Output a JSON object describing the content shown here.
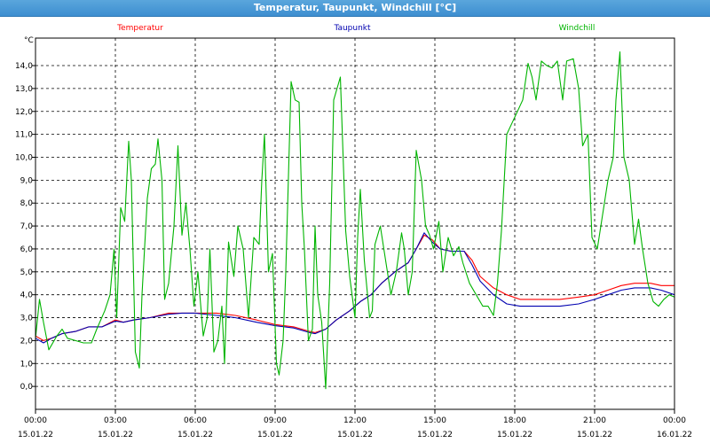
{
  "window": {
    "title": "Temperatur, Taupunkt, Windchill [°C]"
  },
  "chart_data": {
    "type": "line",
    "title": "Temperatur, Taupunkt, Windchill [°C]",
    "ylabel": "°C",
    "xlabel": "",
    "ylim": [
      -1.0,
      15.2
    ],
    "xlim": [
      0,
      24
    ],
    "grid": true,
    "legend": "top",
    "x_ticks": [
      {
        "hour": 0,
        "time": "00:00",
        "date": "15.01.22"
      },
      {
        "hour": 3,
        "time": "03:00",
        "date": "15.01.22"
      },
      {
        "hour": 6,
        "time": "06:00",
        "date": "15.01.22"
      },
      {
        "hour": 9,
        "time": "09:00",
        "date": "15.01.22"
      },
      {
        "hour": 12,
        "time": "12:00",
        "date": "15.01.22"
      },
      {
        "hour": 15,
        "time": "15:00",
        "date": "15.01.22"
      },
      {
        "hour": 18,
        "time": "18:00",
        "date": "15.01.22"
      },
      {
        "hour": 21,
        "time": "21:00",
        "date": "15.01.22"
      },
      {
        "hour": 24,
        "time": "00:00",
        "date": "16.01.22"
      }
    ],
    "y_ticks": [
      "0,0",
      "1,0",
      "2,0",
      "3,0",
      "4,0",
      "5,0",
      "6,0",
      "7,0",
      "8,0",
      "9,0",
      "10,0",
      "11,0",
      "12,0",
      "13,0",
      "14,0"
    ],
    "series": [
      {
        "name": "Temperatur",
        "color": "#ff0000",
        "points": [
          [
            0,
            2.2
          ],
          [
            0.3,
            2.0
          ],
          [
            0.6,
            2.1
          ],
          [
            1.0,
            2.3
          ],
          [
            1.5,
            2.4
          ],
          [
            2.0,
            2.6
          ],
          [
            2.5,
            2.6
          ],
          [
            3.0,
            2.9
          ],
          [
            3.3,
            2.8
          ],
          [
            3.7,
            2.9
          ],
          [
            4.3,
            3.0
          ],
          [
            5.0,
            3.2
          ],
          [
            5.5,
            3.2
          ],
          [
            6.0,
            3.2
          ],
          [
            6.8,
            3.2
          ],
          [
            7.5,
            3.1
          ],
          [
            8.3,
            2.9
          ],
          [
            9.0,
            2.7
          ],
          [
            9.7,
            2.6
          ],
          [
            10.3,
            2.4
          ],
          [
            10.5,
            2.35
          ],
          [
            10.9,
            2.5
          ],
          [
            11.3,
            2.9
          ],
          [
            11.8,
            3.3
          ],
          [
            12.2,
            3.7
          ],
          [
            12.6,
            4.0
          ],
          [
            13.0,
            4.5
          ],
          [
            13.5,
            5.0
          ],
          [
            14.0,
            5.4
          ],
          [
            14.3,
            6.0
          ],
          [
            14.6,
            6.6
          ],
          [
            14.9,
            6.4
          ],
          [
            15.2,
            6.0
          ],
          [
            15.6,
            5.9
          ],
          [
            16.1,
            5.9
          ],
          [
            16.4,
            5.5
          ],
          [
            16.7,
            4.8
          ],
          [
            17.2,
            4.3
          ],
          [
            17.7,
            4.0
          ],
          [
            18.2,
            3.8
          ],
          [
            19.0,
            3.8
          ],
          [
            19.7,
            3.8
          ],
          [
            20.4,
            3.9
          ],
          [
            21.0,
            4.0
          ],
          [
            21.5,
            4.2
          ],
          [
            22.0,
            4.4
          ],
          [
            22.5,
            4.5
          ],
          [
            23.1,
            4.5
          ],
          [
            23.5,
            4.4
          ],
          [
            24,
            4.4
          ]
        ]
      },
      {
        "name": "Taupunkt",
        "color": "#0000b0",
        "points": [
          [
            0,
            2.1
          ],
          [
            0.3,
            1.9
          ],
          [
            0.6,
            2.1
          ],
          [
            1.0,
            2.3
          ],
          [
            1.5,
            2.4
          ],
          [
            2.0,
            2.6
          ],
          [
            2.5,
            2.6
          ],
          [
            3.0,
            2.85
          ],
          [
            3.3,
            2.8
          ],
          [
            3.7,
            2.9
          ],
          [
            4.3,
            3.0
          ],
          [
            5.0,
            3.15
          ],
          [
            5.5,
            3.2
          ],
          [
            6.0,
            3.2
          ],
          [
            6.8,
            3.1
          ],
          [
            7.5,
            3.0
          ],
          [
            8.3,
            2.8
          ],
          [
            9.0,
            2.65
          ],
          [
            9.7,
            2.55
          ],
          [
            10.3,
            2.35
          ],
          [
            10.5,
            2.3
          ],
          [
            10.9,
            2.5
          ],
          [
            11.3,
            2.9
          ],
          [
            11.8,
            3.3
          ],
          [
            12.2,
            3.7
          ],
          [
            12.6,
            4.0
          ],
          [
            13.0,
            4.5
          ],
          [
            13.5,
            5.0
          ],
          [
            14.0,
            5.4
          ],
          [
            14.3,
            6.0
          ],
          [
            14.6,
            6.7
          ],
          [
            14.9,
            6.3
          ],
          [
            15.2,
            6.0
          ],
          [
            15.6,
            5.9
          ],
          [
            16.1,
            5.9
          ],
          [
            16.4,
            5.3
          ],
          [
            16.7,
            4.6
          ],
          [
            17.2,
            4.0
          ],
          [
            17.7,
            3.6
          ],
          [
            18.2,
            3.5
          ],
          [
            19.0,
            3.5
          ],
          [
            19.7,
            3.5
          ],
          [
            20.4,
            3.6
          ],
          [
            21.0,
            3.8
          ],
          [
            21.5,
            4.0
          ],
          [
            22.0,
            4.2
          ],
          [
            22.5,
            4.3
          ],
          [
            23.1,
            4.3
          ],
          [
            23.5,
            4.2
          ],
          [
            24,
            4.0
          ]
        ]
      },
      {
        "name": "Windchill",
        "color": "#00b400",
        "points": [
          [
            0,
            2.1
          ],
          [
            0.15,
            3.8
          ],
          [
            0.3,
            2.8
          ],
          [
            0.5,
            1.6
          ],
          [
            0.8,
            2.2
          ],
          [
            1.0,
            2.5
          ],
          [
            1.2,
            2.1
          ],
          [
            1.5,
            2.0
          ],
          [
            1.8,
            1.9
          ],
          [
            2.1,
            1.9
          ],
          [
            2.3,
            2.5
          ],
          [
            2.6,
            3.3
          ],
          [
            2.8,
            4.0
          ],
          [
            2.95,
            6.0
          ],
          [
            3.05,
            3.0
          ],
          [
            3.2,
            7.8
          ],
          [
            3.35,
            7.2
          ],
          [
            3.5,
            10.7
          ],
          [
            3.6,
            9.0
          ],
          [
            3.75,
            1.5
          ],
          [
            3.9,
            0.8
          ],
          [
            4.0,
            4.0
          ],
          [
            4.2,
            8.2
          ],
          [
            4.35,
            9.5
          ],
          [
            4.5,
            9.7
          ],
          [
            4.6,
            10.8
          ],
          [
            4.75,
            9.0
          ],
          [
            4.85,
            3.8
          ],
          [
            5.0,
            4.5
          ],
          [
            5.2,
            7.0
          ],
          [
            5.35,
            10.5
          ],
          [
            5.5,
            6.6
          ],
          [
            5.65,
            8.0
          ],
          [
            5.8,
            6.0
          ],
          [
            5.95,
            3.5
          ],
          [
            6.1,
            5.0
          ],
          [
            6.3,
            2.2
          ],
          [
            6.45,
            3.0
          ],
          [
            6.55,
            6.0
          ],
          [
            6.7,
            1.5
          ],
          [
            6.85,
            2.0
          ],
          [
            7.0,
            3.5
          ],
          [
            7.1,
            1.0
          ],
          [
            7.25,
            6.3
          ],
          [
            7.45,
            4.8
          ],
          [
            7.6,
            7.0
          ],
          [
            7.8,
            6.0
          ],
          [
            8.0,
            3.0
          ],
          [
            8.2,
            6.5
          ],
          [
            8.4,
            6.2
          ],
          [
            8.5,
            9.0
          ],
          [
            8.6,
            11.0
          ],
          [
            8.75,
            5.0
          ],
          [
            8.9,
            5.8
          ],
          [
            9.05,
            1.0
          ],
          [
            9.15,
            0.5
          ],
          [
            9.3,
            2.0
          ],
          [
            9.4,
            5.0
          ],
          [
            9.6,
            13.3
          ],
          [
            9.75,
            12.5
          ],
          [
            9.9,
            12.4
          ],
          [
            10.0,
            8.0
          ],
          [
            10.1,
            6.0
          ],
          [
            10.25,
            2.0
          ],
          [
            10.4,
            2.5
          ],
          [
            10.5,
            7.0
          ],
          [
            10.6,
            4.0
          ],
          [
            10.75,
            2.8
          ],
          [
            10.9,
            -0.1
          ],
          [
            11.05,
            4.5
          ],
          [
            11.2,
            12.5
          ],
          [
            11.45,
            13.5
          ],
          [
            11.65,
            6.8
          ],
          [
            11.8,
            4.8
          ],
          [
            12.0,
            3.0
          ],
          [
            12.1,
            6.5
          ],
          [
            12.2,
            8.6
          ],
          [
            12.35,
            5.5
          ],
          [
            12.55,
            3.0
          ],
          [
            12.65,
            3.3
          ],
          [
            12.75,
            6.2
          ],
          [
            12.95,
            7.0
          ],
          [
            13.15,
            5.5
          ],
          [
            13.35,
            4.0
          ],
          [
            13.55,
            5.0
          ],
          [
            13.75,
            6.7
          ],
          [
            13.85,
            6.0
          ],
          [
            14.0,
            4.0
          ],
          [
            14.15,
            5.0
          ],
          [
            14.3,
            10.3
          ],
          [
            14.5,
            9.0
          ],
          [
            14.65,
            7.0
          ],
          [
            14.8,
            6.6
          ],
          [
            14.95,
            6.0
          ],
          [
            15.15,
            7.2
          ],
          [
            15.3,
            5.0
          ],
          [
            15.5,
            6.5
          ],
          [
            15.7,
            5.7
          ],
          [
            15.9,
            6.1
          ],
          [
            16.05,
            5.4
          ],
          [
            16.3,
            4.5
          ],
          [
            16.55,
            4.0
          ],
          [
            16.8,
            3.5
          ],
          [
            17.0,
            3.5
          ],
          [
            17.2,
            3.1
          ],
          [
            17.35,
            4.5
          ],
          [
            17.5,
            6.8
          ],
          [
            17.7,
            11.0
          ],
          [
            17.9,
            11.5
          ],
          [
            18.1,
            12.0
          ],
          [
            18.3,
            12.5
          ],
          [
            18.5,
            14.1
          ],
          [
            18.65,
            13.5
          ],
          [
            18.8,
            12.5
          ],
          [
            19.0,
            14.2
          ],
          [
            19.2,
            14.0
          ],
          [
            19.4,
            13.9
          ],
          [
            19.6,
            14.2
          ],
          [
            19.8,
            12.5
          ],
          [
            19.95,
            14.2
          ],
          [
            20.2,
            14.3
          ],
          [
            20.4,
            13.0
          ],
          [
            20.55,
            10.5
          ],
          [
            20.75,
            11.0
          ],
          [
            20.9,
            6.5
          ],
          [
            21.1,
            6.0
          ],
          [
            21.3,
            7.5
          ],
          [
            21.5,
            9.0
          ],
          [
            21.7,
            10.0
          ],
          [
            21.8,
            12.5
          ],
          [
            21.95,
            14.6
          ],
          [
            22.1,
            10.0
          ],
          [
            22.3,
            9.0
          ],
          [
            22.5,
            6.2
          ],
          [
            22.65,
            7.3
          ],
          [
            22.8,
            6.0
          ],
          [
            23.0,
            4.5
          ],
          [
            23.2,
            3.7
          ],
          [
            23.4,
            3.5
          ],
          [
            23.6,
            3.8
          ],
          [
            23.8,
            4.0
          ],
          [
            24,
            3.9
          ]
        ]
      }
    ]
  }
}
